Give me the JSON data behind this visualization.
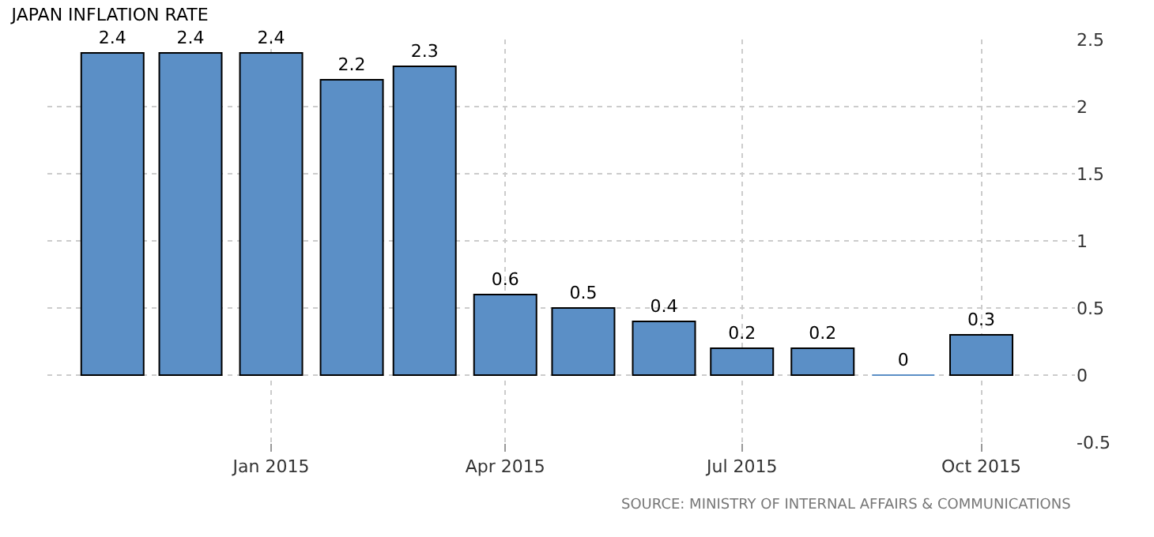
{
  "chart_data": {
    "type": "bar",
    "title": "JAPAN INFLATION RATE",
    "x": [
      "2014-11",
      "2014-12",
      "2015-01",
      "2015-02",
      "2015-03",
      "2015-04",
      "2015-05",
      "2015-06",
      "2015-07",
      "2015-08",
      "2015-09",
      "2015-10"
    ],
    "values": [
      2.4,
      2.4,
      2.4,
      2.2,
      2.3,
      0.6,
      0.5,
      0.4,
      0.2,
      0.2,
      0,
      0.3
    ],
    "color": "#5b8fc6",
    "data_labels": true,
    "xlim": [
      "2014-10-07",
      "2015-11-06"
    ],
    "xticks": [
      {
        "value": "2015-01",
        "label": "Jan 2015"
      },
      {
        "value": "2015-04",
        "label": "Apr 2015"
      },
      {
        "value": "2015-07",
        "label": "Jul 2015"
      },
      {
        "value": "2015-10",
        "label": "Oct 2015"
      }
    ],
    "ylim": [
      -0.5,
      2.5
    ],
    "yticks": [
      -0.5,
      0,
      0.5,
      1,
      1.5,
      2,
      2.5
    ],
    "grid": true,
    "annotations": [
      "SOURCE: MINISTRY OF INTERNAL AFFAIRS & COMMUNICATIONS"
    ]
  }
}
